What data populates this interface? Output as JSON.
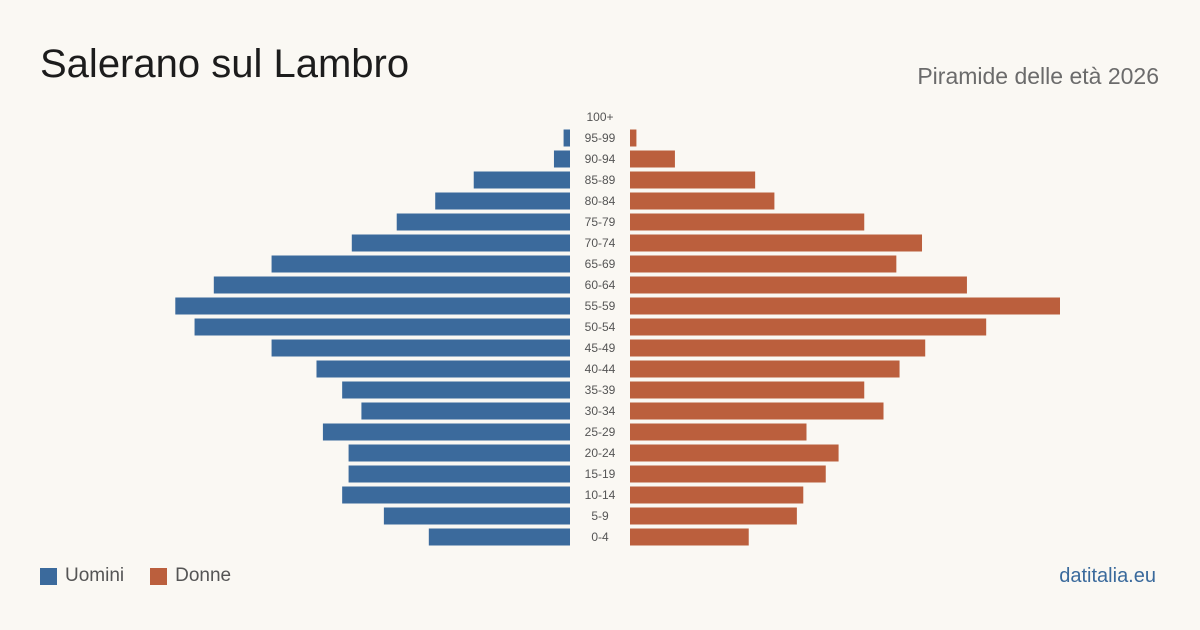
{
  "header": {
    "title": "Salerano sul Lambro",
    "subtitle": "Piramide delle età 2026"
  },
  "legend": {
    "men_label": "Uomini",
    "women_label": "Donne"
  },
  "footer": {
    "source": "datitalia.eu"
  },
  "colors": {
    "men": "#3b6a9c",
    "women": "#bb5f3d",
    "background": "#faf8f3"
  },
  "chart_data": {
    "type": "bar",
    "orientation": "horizontal-pyramid",
    "categories": [
      "0-4",
      "5-9",
      "10-14",
      "15-19",
      "20-24",
      "25-29",
      "30-34",
      "35-39",
      "40-44",
      "45-49",
      "50-54",
      "55-59",
      "60-64",
      "65-69",
      "70-74",
      "75-79",
      "80-84",
      "85-89",
      "90-94",
      "95-99",
      "100+"
    ],
    "series": [
      {
        "name": "Uomini",
        "values": [
          22,
          29,
          35.5,
          34.5,
          34.5,
          38.5,
          32.5,
          35.5,
          39.5,
          46.5,
          58.5,
          61.5,
          55.5,
          46.5,
          34,
          27,
          21,
          15,
          2.5,
          1,
          0
        ]
      },
      {
        "name": "Donne",
        "values": [
          18.5,
          26,
          27,
          30.5,
          32.5,
          27.5,
          39.5,
          36.5,
          42,
          46,
          55.5,
          67,
          52.5,
          41.5,
          45.5,
          36.5,
          22.5,
          19.5,
          7,
          1,
          0
        ]
      }
    ],
    "xlim": [
      0,
      67
    ],
    "grid": false,
    "legend_position": "bottom-left"
  }
}
